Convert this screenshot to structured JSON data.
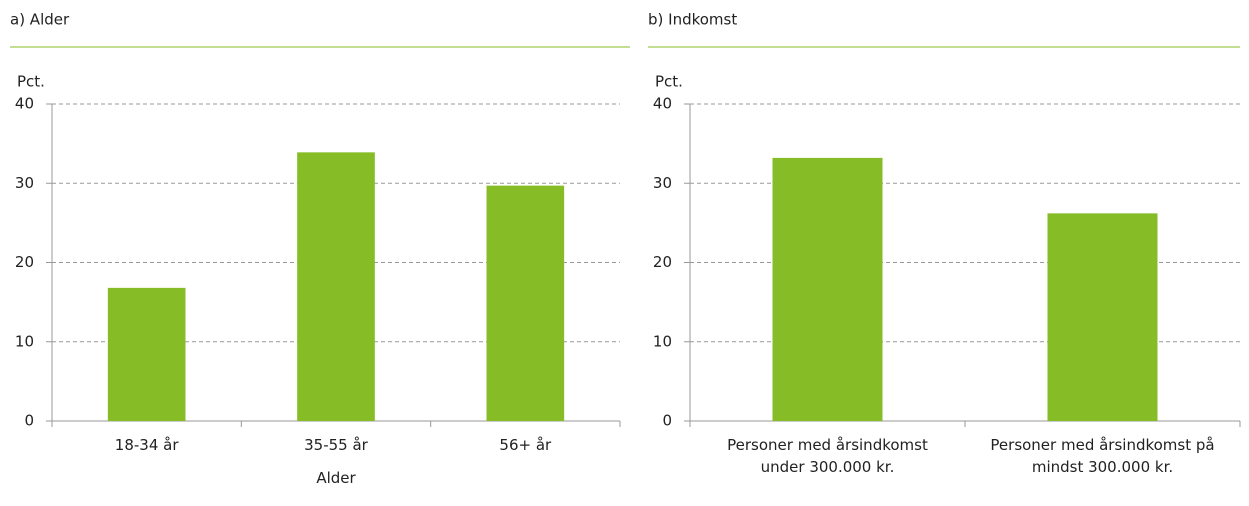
{
  "chart_data": [
    {
      "type": "bar",
      "title": "a) Alder",
      "y_label": "Pct.",
      "x_label": "Alder",
      "categories": [
        "18-34 år",
        "35-55 år",
        "56+ år"
      ],
      "values": [
        16.8,
        33.9,
        29.7
      ],
      "color": "#86bc25",
      "ylim": [
        0,
        40
      ],
      "yticks": [
        0,
        10,
        20,
        30,
        40
      ],
      "grid": true
    },
    {
      "type": "bar",
      "title": "b) Indkomst",
      "y_label": "Pct.",
      "categories": [
        "Personer med årsindkomst under 300.000 kr.",
        "Personer med årsindkomst på mindst 300.000 kr."
      ],
      "values": [
        33.2,
        26.2
      ],
      "color": "#86bc25",
      "ylim": [
        0,
        40
      ],
      "yticks": [
        0,
        10,
        20,
        30,
        40
      ],
      "grid": true
    }
  ]
}
